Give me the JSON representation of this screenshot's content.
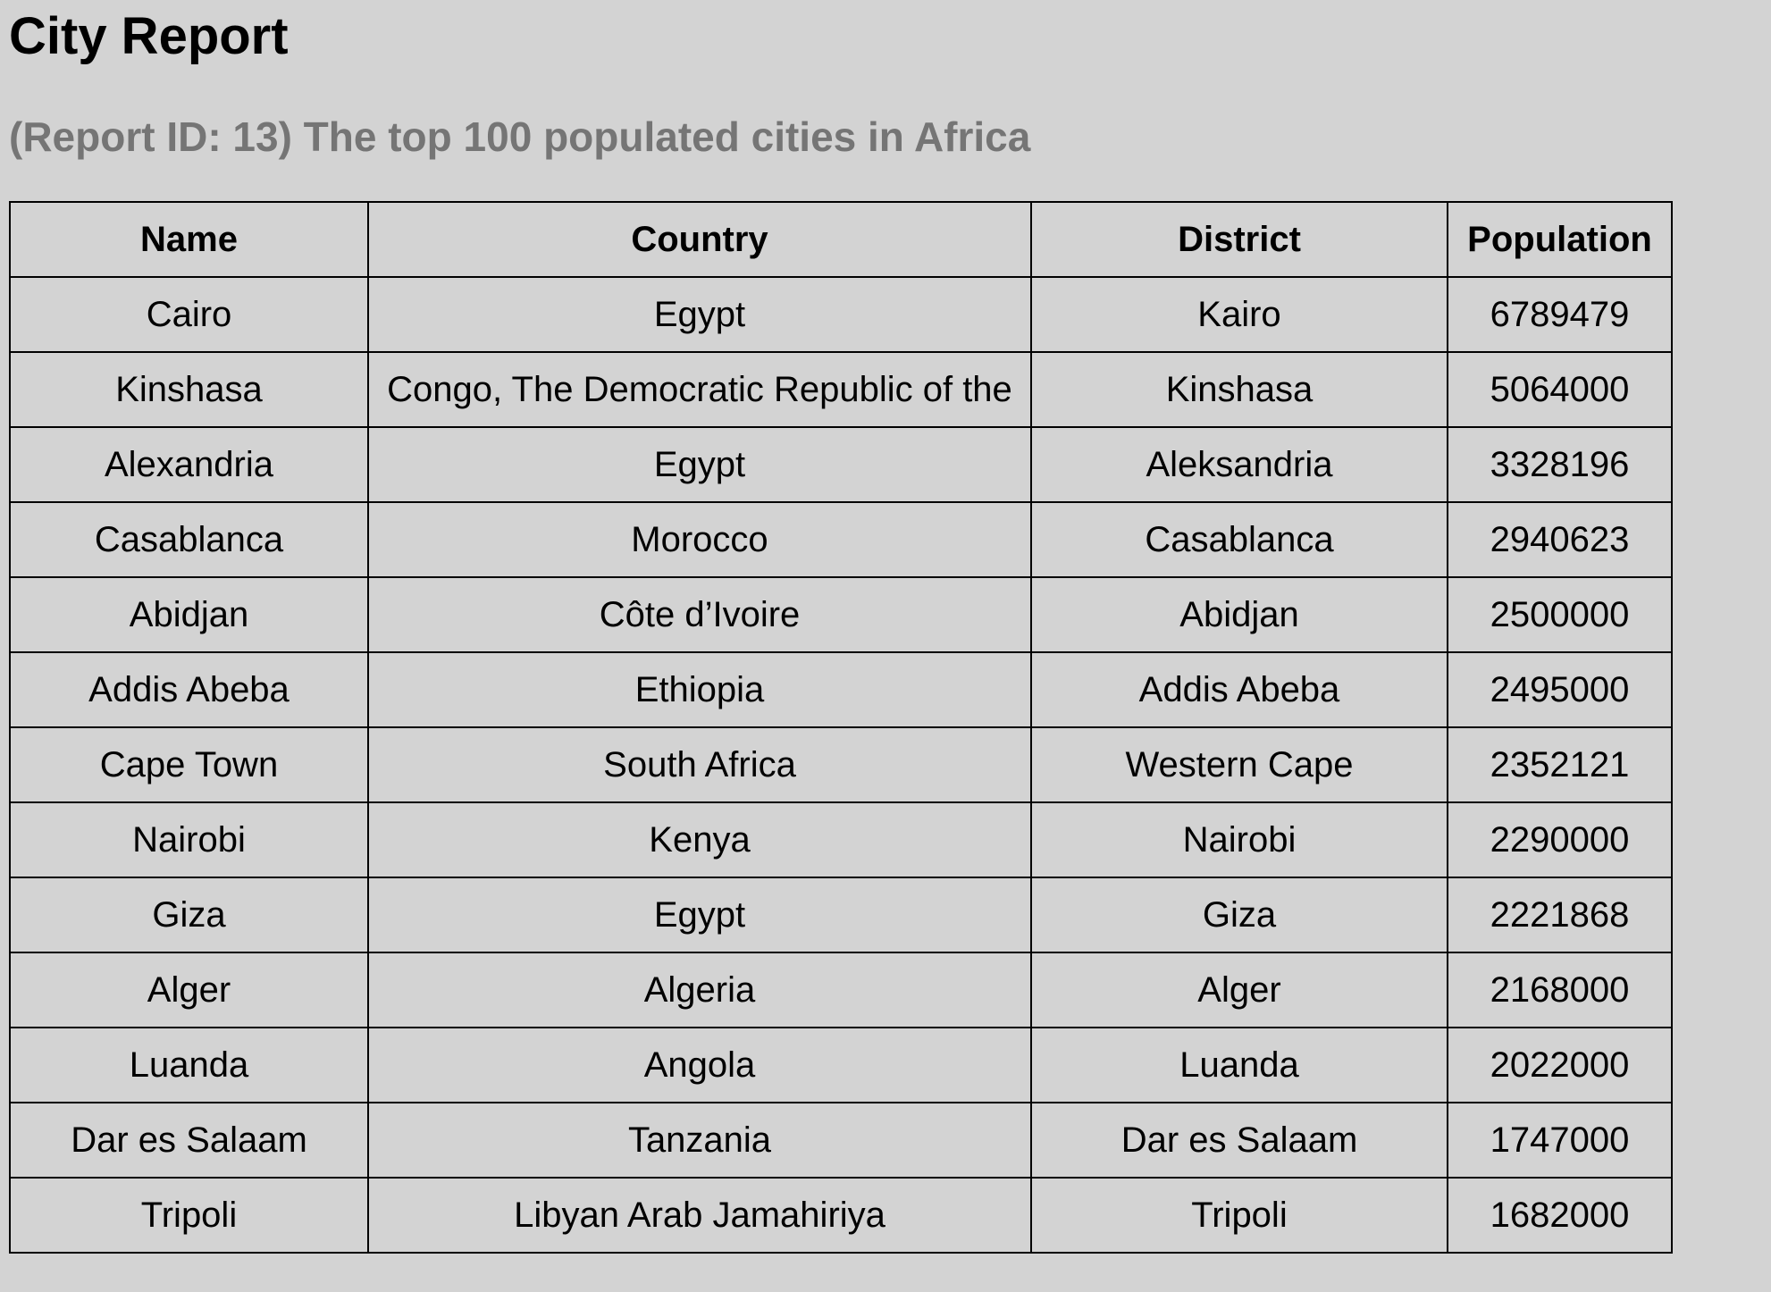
{
  "report": {
    "title": "City Report",
    "subtitle": "(Report ID: 13) The top 100 populated cities in Africa"
  },
  "table": {
    "headers": [
      "Name",
      "Country",
      "District",
      "Population"
    ],
    "rows": [
      [
        "Cairo",
        "Egypt",
        "Kairo",
        "6789479"
      ],
      [
        "Kinshasa",
        "Congo, The Democratic Republic of the",
        "Kinshasa",
        "5064000"
      ],
      [
        "Alexandria",
        "Egypt",
        "Aleksandria",
        "3328196"
      ],
      [
        "Casablanca",
        "Morocco",
        "Casablanca",
        "2940623"
      ],
      [
        "Abidjan",
        "Côte d’Ivoire",
        "Abidjan",
        "2500000"
      ],
      [
        "Addis Abeba",
        "Ethiopia",
        "Addis Abeba",
        "2495000"
      ],
      [
        "Cape Town",
        "South Africa",
        "Western Cape",
        "2352121"
      ],
      [
        "Nairobi",
        "Kenya",
        "Nairobi",
        "2290000"
      ],
      [
        "Giza",
        "Egypt",
        "Giza",
        "2221868"
      ],
      [
        "Alger",
        "Algeria",
        "Alger",
        "2168000"
      ],
      [
        "Luanda",
        "Angola",
        "Luanda",
        "2022000"
      ],
      [
        "Dar es Salaam",
        "Tanzania",
        "Dar es Salaam",
        "1747000"
      ],
      [
        "Tripoli",
        "Libyan Arab Jamahiriya",
        "Tripoli",
        "1682000"
      ]
    ]
  }
}
